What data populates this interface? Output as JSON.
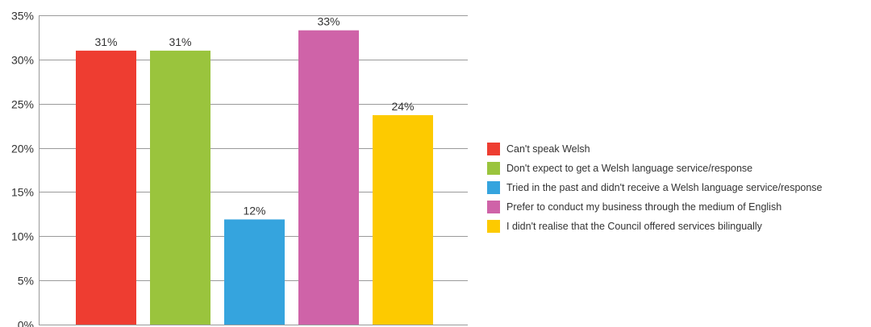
{
  "chart_data": {
    "type": "bar",
    "title": "",
    "xlabel": "",
    "ylabel": "",
    "ylim": [
      0,
      35
    ],
    "y_ticks": [
      "0%",
      "5%",
      "10%",
      "15%",
      "20%",
      "25%",
      "30%",
      "35%"
    ],
    "y_tick_values": [
      0,
      5,
      10,
      15,
      20,
      25,
      30,
      35
    ],
    "grid": true,
    "legend_position": "right",
    "categories": [
      "Can't speak Welsh",
      "Don't expect to get a Welsh language service/response",
      "Tried in the past and didn't receive a Welsh language service/response",
      "Prefer to conduct my business through the medium of English",
      "I didn't realise that the Council offered services bilingually"
    ],
    "values": [
      31,
      31,
      11.9,
      33.3,
      23.7
    ],
    "data_labels": [
      "31%",
      "31%",
      "12%",
      "33%",
      "24%"
    ],
    "colors": [
      "#ee3d31",
      "#9ac43d",
      "#35a4de",
      "#cf63a8",
      "#fdca00"
    ]
  }
}
